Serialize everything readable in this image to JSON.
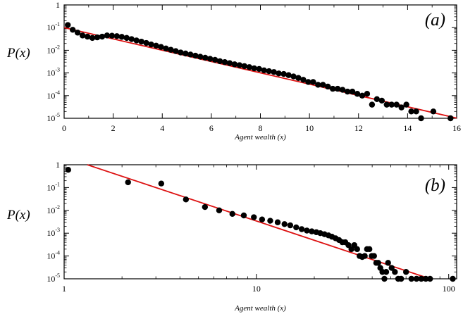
{
  "chart_data": [
    {
      "type": "scatter",
      "panel_label": "(a)",
      "xlabel": "Agent wealth (x)",
      "ylabel": "P(x)",
      "xscale": "linear",
      "yscale": "log",
      "xlim": [
        0,
        16
      ],
      "ylim": [
        1e-05,
        1
      ],
      "xticks": [
        0,
        2,
        4,
        6,
        8,
        10,
        12,
        14,
        16
      ],
      "yticks": [
        {
          "value": 1,
          "base": "1",
          "exp": ""
        },
        {
          "value": 0.1,
          "base": "10",
          "exp": "-1"
        },
        {
          "value": 0.01,
          "base": "10",
          "exp": "-2"
        },
        {
          "value": 0.001,
          "base": "10",
          "exp": "-3"
        },
        {
          "value": 0.0001,
          "base": "10",
          "exp": "-4"
        },
        {
          "value": 1e-05,
          "base": "10",
          "exp": "-5"
        }
      ],
      "fit_line": {
        "x": [
          0,
          16
        ],
        "y": [
          0.1,
          1.02e-05
        ],
        "color": "#dd1111"
      },
      "points": [
        [
          0.15,
          0.13
        ],
        [
          0.35,
          0.08
        ],
        [
          0.55,
          0.06
        ],
        [
          0.75,
          0.045
        ],
        [
          0.95,
          0.04
        ],
        [
          1.15,
          0.035
        ],
        [
          1.35,
          0.037
        ],
        [
          1.55,
          0.04
        ],
        [
          1.75,
          0.045
        ],
        [
          1.95,
          0.044
        ],
        [
          2.15,
          0.042
        ],
        [
          2.35,
          0.039
        ],
        [
          2.55,
          0.035
        ],
        [
          2.75,
          0.031
        ],
        [
          2.95,
          0.027
        ],
        [
          3.15,
          0.024
        ],
        [
          3.35,
          0.021
        ],
        [
          3.55,
          0.018
        ],
        [
          3.75,
          0.016
        ],
        [
          3.95,
          0.014
        ],
        [
          4.15,
          0.012
        ],
        [
          4.35,
          0.0105
        ],
        [
          4.55,
          0.0092
        ],
        [
          4.75,
          0.008
        ],
        [
          4.95,
          0.0072
        ],
        [
          5.15,
          0.0065
        ],
        [
          5.35,
          0.0058
        ],
        [
          5.55,
          0.0052
        ],
        [
          5.75,
          0.0047
        ],
        [
          5.95,
          0.0042
        ],
        [
          6.15,
          0.0038
        ],
        [
          6.35,
          0.0033
        ],
        [
          6.55,
          0.003
        ],
        [
          6.75,
          0.0027
        ],
        [
          6.95,
          0.0024
        ],
        [
          7.15,
          0.0022
        ],
        [
          7.35,
          0.002
        ],
        [
          7.55,
          0.0018
        ],
        [
          7.75,
          0.0016
        ],
        [
          7.95,
          0.0015
        ],
        [
          8.15,
          0.0013
        ],
        [
          8.35,
          0.0012
        ],
        [
          8.55,
          0.0011
        ],
        [
          8.75,
          0.00095
        ],
        [
          8.95,
          0.0009
        ],
        [
          9.15,
          0.0008
        ],
        [
          9.35,
          0.0007
        ],
        [
          9.55,
          0.0006
        ],
        [
          9.75,
          0.0005
        ],
        [
          9.95,
          0.0004
        ],
        [
          10.15,
          0.0004
        ],
        [
          10.35,
          0.0003
        ],
        [
          10.55,
          0.0003
        ],
        [
          10.75,
          0.00025
        ],
        [
          10.95,
          0.0002
        ],
        [
          11.15,
          0.0002
        ],
        [
          11.35,
          0.00018
        ],
        [
          11.55,
          0.00015
        ],
        [
          11.75,
          0.00015
        ],
        [
          11.95,
          0.00012
        ],
        [
          12.15,
          0.0001
        ],
        [
          12.35,
          0.00012
        ],
        [
          12.55,
          4e-05
        ],
        [
          12.75,
          7e-05
        ],
        [
          12.95,
          6e-05
        ],
        [
          13.15,
          4e-05
        ],
        [
          13.35,
          4e-05
        ],
        [
          13.55,
          4e-05
        ],
        [
          13.75,
          3e-05
        ],
        [
          13.95,
          4e-05
        ],
        [
          14.15,
          2e-05
        ],
        [
          14.35,
          2e-05
        ],
        [
          14.55,
          1e-05
        ],
        [
          15.05,
          2e-05
        ],
        [
          15.75,
          1e-05
        ]
      ]
    },
    {
      "type": "scatter",
      "panel_label": "(b)",
      "xlabel": "Agent wealth (x)",
      "ylabel": "P(x)",
      "xscale": "log",
      "yscale": "log",
      "xlim": [
        1,
        110
      ],
      "ylim": [
        1e-05,
        1
      ],
      "xticks": [
        {
          "value": 1,
          "label": "1"
        },
        {
          "value": 10,
          "label": "10"
        },
        {
          "value": 100,
          "label": "100"
        }
      ],
      "yticks": [
        {
          "value": 1,
          "base": "1",
          "exp": ""
        },
        {
          "value": 0.1,
          "base": "10",
          "exp": "-1"
        },
        {
          "value": 0.01,
          "base": "10",
          "exp": "-2"
        },
        {
          "value": 0.001,
          "base": "10",
          "exp": "-3"
        },
        {
          "value": 0.0001,
          "base": "10",
          "exp": "-4"
        },
        {
          "value": 1e-05,
          "base": "10",
          "exp": "-5"
        }
      ],
      "fit_line": {
        "x": [
          1.32,
          80
        ],
        "y": [
          1,
          1e-05
        ],
        "color": "#dd1111"
      },
      "points": [
        [
          1.05,
          0.6
        ],
        [
          2.15,
          0.17
        ],
        [
          3.2,
          0.15
        ],
        [
          4.3,
          0.03
        ],
        [
          5.4,
          0.014
        ],
        [
          6.4,
          0.01
        ],
        [
          7.5,
          0.007
        ],
        [
          8.6,
          0.006
        ],
        [
          9.7,
          0.005
        ],
        [
          10.7,
          0.004
        ],
        [
          11.8,
          0.0035
        ],
        [
          12.9,
          0.003
        ],
        [
          14,
          0.0025
        ],
        [
          15,
          0.0022
        ],
        [
          16.1,
          0.0018
        ],
        [
          17.2,
          0.0015
        ],
        [
          18.3,
          0.0013
        ],
        [
          19.4,
          0.0012
        ],
        [
          20.5,
          0.0011
        ],
        [
          21.5,
          0.001
        ],
        [
          22.6,
          0.0009
        ],
        [
          23.7,
          0.0008
        ],
        [
          24.7,
          0.0007
        ],
        [
          25.8,
          0.0006
        ],
        [
          26.9,
          0.0005
        ],
        [
          28,
          0.0004
        ],
        [
          29,
          0.0004
        ],
        [
          30.1,
          0.0003
        ],
        [
          31.2,
          0.0002
        ],
        [
          32.3,
          0.0003
        ],
        [
          33.4,
          0.0002
        ],
        [
          34.4,
          0.0001
        ],
        [
          35.5,
          9e-05
        ],
        [
          36.6,
          0.0001
        ],
        [
          37.6,
          0.0002
        ],
        [
          38.7,
          0.0002
        ],
        [
          39.8,
          0.0001
        ],
        [
          40.9,
          0.0001
        ],
        [
          42,
          5e-05
        ],
        [
          43,
          5e-05
        ],
        [
          44.1,
          3e-05
        ],
        [
          45.2,
          2e-05
        ],
        [
          46.3,
          1e-05
        ],
        [
          47.3,
          2e-05
        ],
        [
          48.4,
          5e-05
        ],
        [
          50.5,
          3e-05
        ],
        [
          52.5,
          2e-05
        ],
        [
          54.6,
          1e-05
        ],
        [
          56.6,
          1e-05
        ],
        [
          60,
          2e-05
        ],
        [
          64,
          1e-05
        ],
        [
          68,
          1e-05
        ],
        [
          72,
          1e-05
        ],
        [
          76,
          1e-05
        ],
        [
          80,
          1e-05
        ],
        [
          105,
          1e-05
        ]
      ]
    }
  ]
}
